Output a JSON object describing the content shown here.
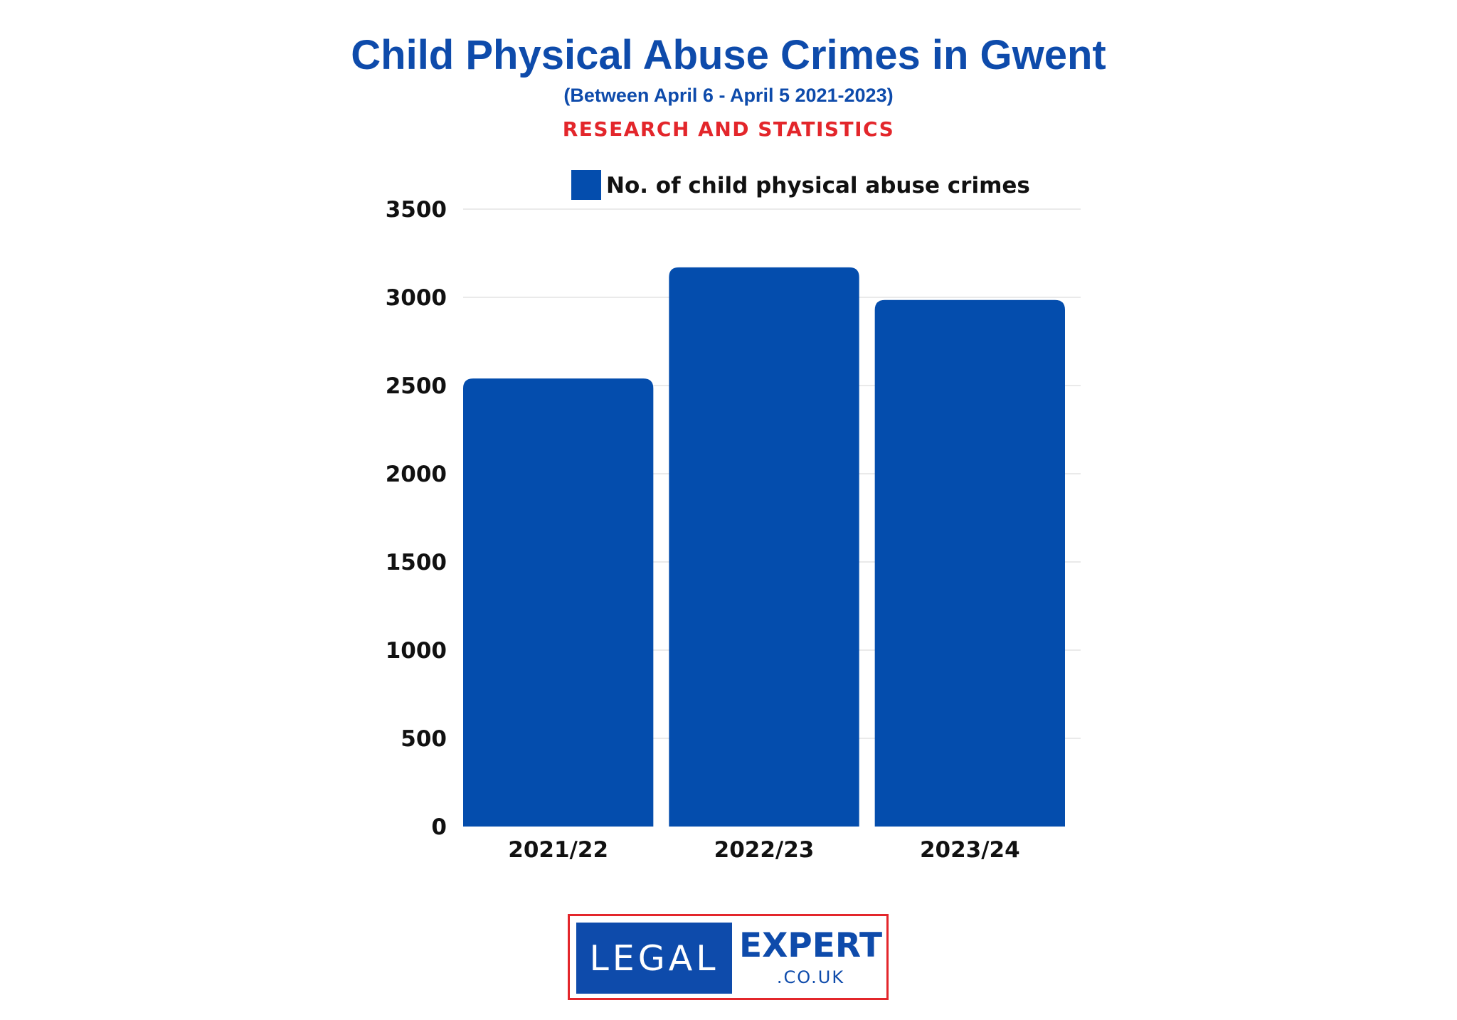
{
  "header": {
    "title": "Child Physical Abuse Crimes in Gwent",
    "subtitle": "(Between April 6 - April 5 2021-2023)",
    "kicker": "RESEARCH AND STATISTICS"
  },
  "chart_data": {
    "type": "bar",
    "categories": [
      "2021/22",
      "2022/23",
      "2023/24"
    ],
    "series": [
      {
        "name": "No. of child physical abuse crimes",
        "values": [
          2540,
          3170,
          2985
        ]
      }
    ],
    "ylim": [
      0,
      3500
    ],
    "yticks": [
      0,
      500,
      1000,
      1500,
      2000,
      2500,
      3000,
      3500
    ],
    "grid": true,
    "legend": "top-center",
    "bar_color": "#044dad"
  },
  "logo": {
    "left_text": "LEGAL",
    "right_text": "EXPERT",
    "domain_text": ".CO.UK"
  },
  "colors": {
    "brand_blue": "#0e4bab",
    "accent_red": "#e3262b"
  }
}
